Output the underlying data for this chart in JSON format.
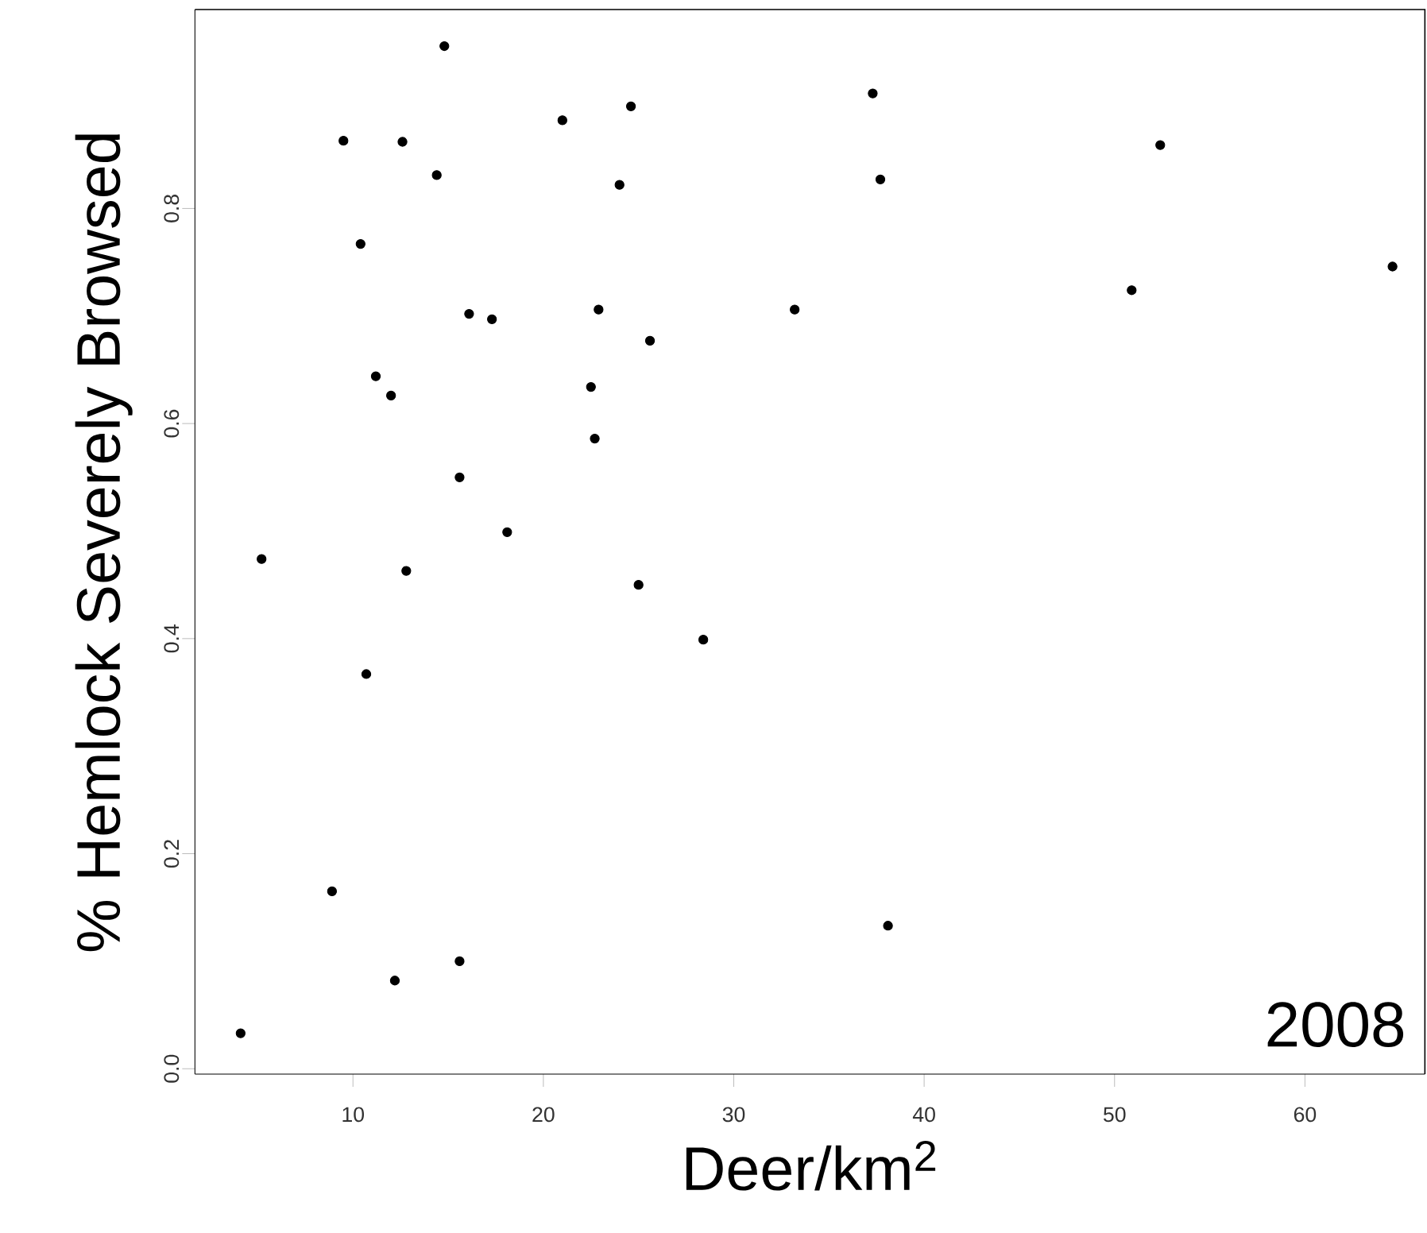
{
  "chart_data": {
    "type": "scatter",
    "xlabel": "Deer/km$^{2}$",
    "ylabel": "% Hemlock Severely Browsed",
    "x": [
      4.1,
      5.2,
      8.9,
      9.5,
      10.4,
      10.7,
      11.2,
      12.0,
      12.2,
      12.6,
      12.8,
      14.4,
      14.8,
      15.6,
      15.6,
      16.1,
      17.3,
      18.1,
      21.0,
      22.5,
      22.7,
      22.9,
      24.0,
      24.6,
      25.0,
      25.6,
      28.4,
      33.2,
      37.3,
      37.7,
      38.1,
      50.9,
      52.4,
      64.6
    ],
    "values": [
      0.033,
      0.474,
      0.165,
      0.863,
      0.767,
      0.367,
      0.644,
      0.626,
      0.082,
      0.862,
      0.463,
      0.831,
      0.951,
      0.55,
      0.1,
      0.702,
      0.697,
      0.499,
      0.882,
      0.634,
      0.586,
      0.706,
      0.822,
      0.895,
      0.45,
      0.677,
      0.399,
      0.706,
      0.907,
      0.827,
      0.133,
      0.724,
      0.859,
      0.746
    ],
    "color": "#000000",
    "marker": "circle",
    "xlim": [
      1.7,
      66.3
    ],
    "ylim": [
      -0.005,
      0.985
    ],
    "xticks": [
      10,
      20,
      30,
      40,
      50,
      60
    ],
    "yticks": [
      {
        "value": 0,
        "label": "0.0"
      },
      {
        "value": 0.2,
        "label": "0.2"
      },
      {
        "value": 0.4,
        "label": "0.4"
      },
      {
        "value": 0.6,
        "label": "0.6"
      },
      {
        "value": 0.8,
        "label": "0.8"
      }
    ],
    "annotations": [
      "2008"
    ]
  }
}
